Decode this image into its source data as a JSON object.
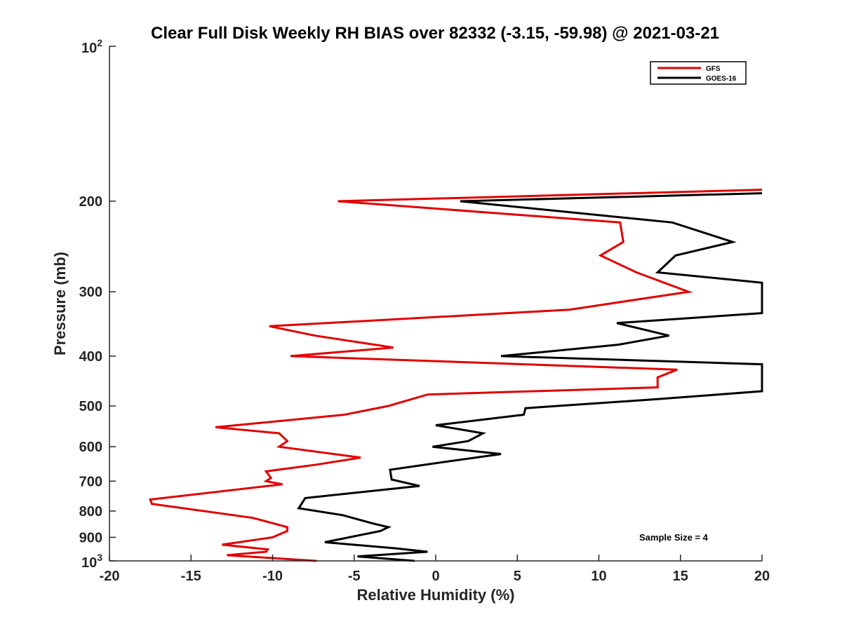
{
  "chart_data": {
    "type": "line",
    "title": "Clear Full Disk Weekly RH BIAS over 82332 (-3.15, -59.98) @ 2021-03-21",
    "xlabel": "Relative Humidity (%)",
    "ylabel": "Pressure (mb)",
    "xlim": [
      -20,
      20
    ],
    "ylim": [
      100,
      1000
    ],
    "y_scale": "log",
    "y_reversed": true,
    "x_ticks": [
      "-20",
      "-15",
      "-10",
      "-5",
      "0",
      "5",
      "10",
      "15",
      "20"
    ],
    "y_ticks": [
      {
        "value": 100,
        "base": "10",
        "exp": "2"
      },
      {
        "value": 200,
        "label": "200"
      },
      {
        "value": 300,
        "label": "300"
      },
      {
        "value": 400,
        "label": "400"
      },
      {
        "value": 500,
        "label": "500"
      },
      {
        "value": 600,
        "label": "600"
      },
      {
        "value": 700,
        "label": "700"
      },
      {
        "value": 800,
        "label": "800"
      },
      {
        "value": 900,
        "label": "900"
      },
      {
        "value": 1000,
        "base": "10",
        "exp": "3"
      }
    ],
    "grid": false,
    "legend_position": "top-right",
    "annotation": "Sample Size = 4",
    "series": [
      {
        "name": "GFS",
        "color": "#e00000",
        "points": [
          [
            20,
            190
          ],
          [
            -6,
            200
          ],
          [
            11.3,
            220
          ],
          [
            11.5,
            240
          ],
          [
            10.1,
            255
          ],
          [
            12.3,
            275
          ],
          [
            15.5,
            300
          ],
          [
            8.2,
            325
          ],
          [
            -10.2,
            350
          ],
          [
            -7.4,
            365
          ],
          [
            -2.6,
            385
          ],
          [
            -8.9,
            400
          ],
          [
            14.8,
            425
          ],
          [
            13.6,
            440
          ],
          [
            13.6,
            460
          ],
          [
            -0.5,
            475
          ],
          [
            -2.9,
            500
          ],
          [
            -5.6,
            520
          ],
          [
            -13.5,
            550
          ],
          [
            -9.6,
            565
          ],
          [
            -9.1,
            585
          ],
          [
            -9.6,
            600
          ],
          [
            -4.6,
            630
          ],
          [
            -7.3,
            650
          ],
          [
            -10.4,
            670
          ],
          [
            -10.1,
            690
          ],
          [
            -10.4,
            700
          ],
          [
            -9.4,
            710
          ],
          [
            -17.5,
            760
          ],
          [
            -17.4,
            775
          ],
          [
            -11.2,
            825
          ],
          [
            -9.1,
            860
          ],
          [
            -9.1,
            875
          ],
          [
            -10.0,
            900
          ],
          [
            -13.1,
            930
          ],
          [
            -10.3,
            950
          ],
          [
            -10.4,
            960
          ],
          [
            -12.8,
            975
          ],
          [
            -7.3,
            1000
          ]
        ]
      },
      {
        "name": "GOES-16",
        "color": "#000000",
        "points": [
          [
            20,
            193
          ],
          [
            1.5,
            200
          ],
          [
            14.5,
            220
          ],
          [
            18.2,
            240
          ],
          [
            14.7,
            255
          ],
          [
            13.6,
            275
          ],
          [
            20,
            288
          ],
          [
            20,
            330
          ],
          [
            11.1,
            345
          ],
          [
            14.3,
            365
          ],
          [
            11.2,
            380
          ],
          [
            4.0,
            400
          ],
          [
            20,
            415
          ],
          [
            20,
            468
          ],
          [
            13.6,
            485
          ],
          [
            5.5,
            505
          ],
          [
            5.4,
            520
          ],
          [
            0,
            545
          ],
          [
            2.9,
            565
          ],
          [
            2.0,
            585
          ],
          [
            -0.2,
            600
          ],
          [
            4.0,
            620
          ],
          [
            0.9,
            640
          ],
          [
            -2.8,
            665
          ],
          [
            -2.7,
            695
          ],
          [
            -1.0,
            715
          ],
          [
            -8.0,
            755
          ],
          [
            -8.4,
            790
          ],
          [
            -5.7,
            815
          ],
          [
            -3.9,
            845
          ],
          [
            -2.9,
            860
          ],
          [
            -3.4,
            875
          ],
          [
            -6.8,
            920
          ],
          [
            -2.5,
            945
          ],
          [
            -0.5,
            960
          ],
          [
            -4.8,
            980
          ],
          [
            -1.3,
            1000
          ]
        ]
      }
    ]
  }
}
